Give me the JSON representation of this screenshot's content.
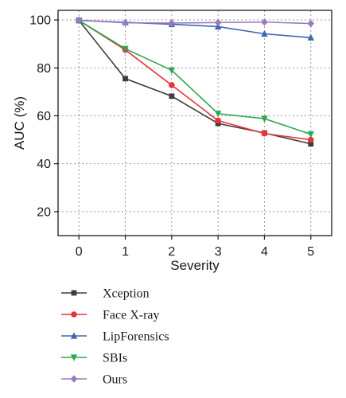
{
  "chart_data": {
    "type": "line",
    "xlabel": "Severity",
    "ylabel": "AUC (%)",
    "x": [
      0,
      1,
      2,
      3,
      4,
      5
    ],
    "xlim": [
      -0.45,
      5.45
    ],
    "ylim": [
      10,
      104
    ],
    "yticks": [
      20,
      40,
      60,
      80,
      100
    ],
    "grid": true,
    "legend_position": "below",
    "series": [
      {
        "name": "Xception",
        "color": "#3d3d3d",
        "marker": "square",
        "values": [
          99.8,
          75.5,
          68.2,
          56.8,
          52.8,
          48.3
        ]
      },
      {
        "name": "Face X-ray",
        "color": "#e8343a",
        "marker": "circle",
        "values": [
          99.8,
          87.5,
          72.8,
          58.0,
          52.6,
          50.0
        ]
      },
      {
        "name": "LipForensics",
        "color": "#3f66b4",
        "marker": "triangle-up",
        "values": [
          99.8,
          99.0,
          98.2,
          97.2,
          94.2,
          92.6
        ]
      },
      {
        "name": "SBIs",
        "color": "#2fa84f",
        "marker": "triangle-down",
        "values": [
          99.8,
          88.0,
          79.0,
          60.9,
          58.8,
          52.3
        ]
      },
      {
        "name": "Ours",
        "color": "#9a7bc2",
        "marker": "diamond",
        "values": [
          99.9,
          98.8,
          98.7,
          98.9,
          99.1,
          98.5
        ]
      }
    ]
  }
}
